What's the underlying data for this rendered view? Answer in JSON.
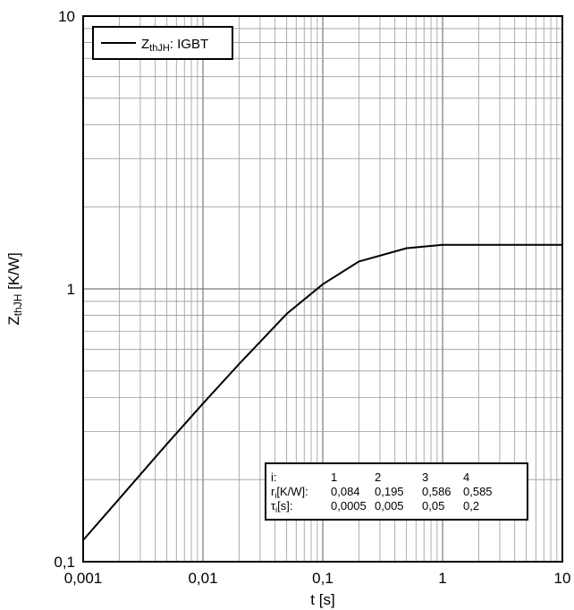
{
  "chart_data": {
    "type": "line",
    "xscale": "log",
    "yscale": "log",
    "xlim": [
      0.001,
      10
    ],
    "ylim": [
      0.1,
      10
    ],
    "grid": true,
    "x_tick_labels": [
      "0,001",
      "0,01",
      "0,1",
      "1",
      "10"
    ],
    "y_tick_labels": [
      "0,1",
      "1",
      "10"
    ],
    "xlabel": "t [s]",
    "ylabel": {
      "main": "Z",
      "sub": "thJH",
      "unit": " [K/W]"
    },
    "legend_position": "top-left",
    "series": [
      {
        "name": "IGBT",
        "legend_main": "Z",
        "legend_sub": "thJH",
        "legend_rest": ": IGBT",
        "color": "#000000",
        "x": [
          0.001,
          0.002,
          0.005,
          0.01,
          0.02,
          0.05,
          0.1,
          0.2,
          0.5,
          1,
          2,
          5,
          10
        ],
        "y": [
          0.12,
          0.17,
          0.27,
          0.38,
          0.53,
          0.81,
          1.04,
          1.26,
          1.41,
          1.45,
          1.45,
          1.45,
          1.45
        ]
      }
    ],
    "parameter_table": {
      "rows": [
        {
          "label_main": "i:",
          "label_sub": "",
          "label_rest": "",
          "values": [
            "1",
            "2",
            "3",
            "4"
          ]
        },
        {
          "label_main": "r",
          "label_sub": "i",
          "label_rest": "[K/W]:",
          "values": [
            "0,084",
            "0,195",
            "0,586",
            "0,585"
          ]
        },
        {
          "label_main": "τ",
          "label_sub": "i",
          "label_rest": "[s]:",
          "values": [
            "0,0005",
            "0,005",
            "0,05",
            "0,2"
          ]
        }
      ]
    }
  }
}
